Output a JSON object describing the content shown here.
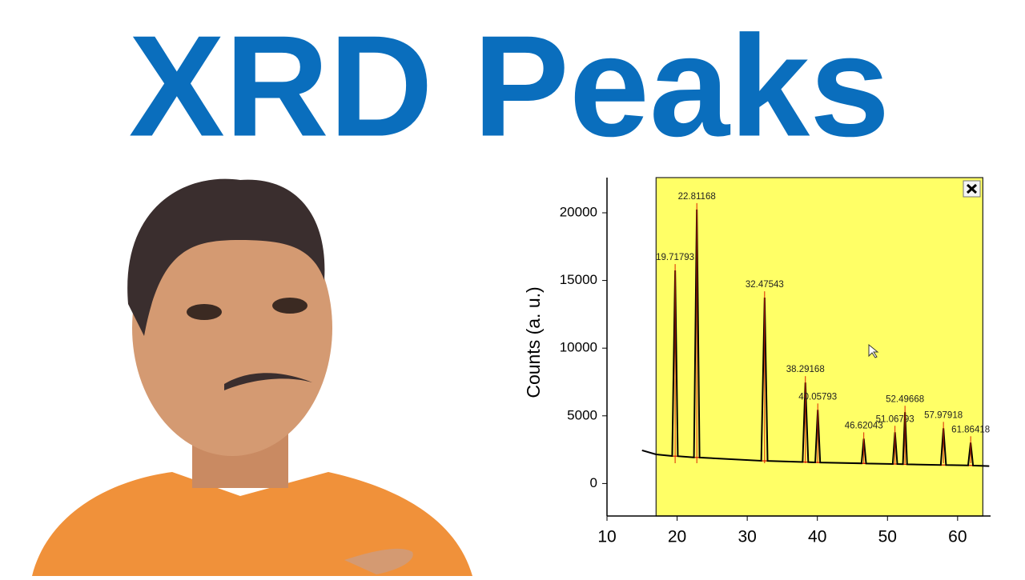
{
  "headline": "XRD Peaks",
  "chart_data": {
    "type": "line",
    "y_label": "Counts (a. u.)",
    "xlim": [
      10,
      64.7
    ],
    "xticks": [
      10,
      20,
      30,
      40,
      50,
      60
    ],
    "ylim": [
      -2400,
      22600
    ],
    "yticks": [
      0,
      5000,
      10000,
      15000,
      20000
    ],
    "highlight": {
      "range": [
        17,
        63.6
      ],
      "color": "#ffff66"
    },
    "x": [
      15,
      17,
      19.3,
      19.72,
      20.1,
      22.4,
      22.81,
      23.2,
      32.0,
      32.48,
      32.9,
      37.9,
      38.29,
      38.7,
      39.7,
      40.06,
      40.4,
      46.3,
      46.62,
      46.95,
      50.75,
      51.07,
      51.4,
      52.2,
      52.5,
      52.8,
      57.6,
      57.98,
      58.35,
      61.5,
      61.86,
      62.2,
      64.5
    ],
    "series": [
      {
        "color": "#000000",
        "values": [
          2450,
          2150,
          2030,
          15740,
          2020,
          1930,
          20240,
          1920,
          1680,
          13730,
          1670,
          1590,
          7460,
          1580,
          1560,
          5440,
          1550,
          1490,
          3310,
          1480,
          1440,
          3790,
          1440,
          1430,
          5270,
          1420,
          1370,
          4080,
          1370,
          1340,
          3020,
          1330,
          1290
        ]
      },
      {
        "color": "#cc0000",
        "values": [
          2450,
          2150,
          2030,
          2020,
          2020,
          1930,
          1925,
          1920,
          1680,
          1675,
          1670,
          1590,
          1585,
          1580,
          1560,
          1555,
          1550,
          1490,
          1485,
          1480,
          1440,
          1440,
          1440,
          1430,
          1425,
          1420,
          1370,
          1370,
          1370,
          1340,
          1335,
          1330,
          1290
        ]
      }
    ],
    "peaks": {
      "color": "#dd2200",
      "x": [
        19.71793,
        22.81168,
        32.47543,
        38.29168,
        40.05793,
        46.62043,
        51.06793,
        52.49668,
        57.97918,
        61.86418
      ],
      "y": [
        15740,
        20240,
        13730,
        7460,
        5440,
        3310,
        3790,
        5270,
        4080,
        3020
      ]
    }
  }
}
